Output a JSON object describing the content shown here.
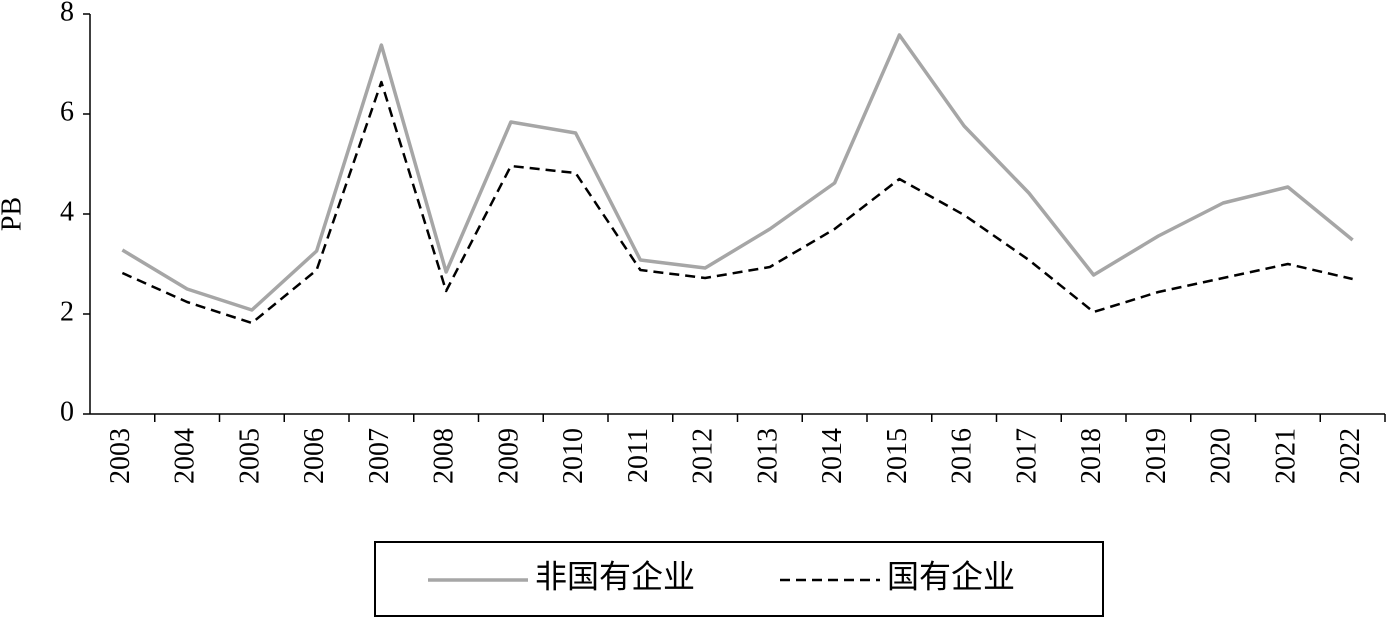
{
  "chart_data": {
    "type": "line",
    "ylabel": "PB",
    "categories": [
      "2003",
      "2004",
      "2005",
      "2006",
      "2007",
      "2008",
      "2009",
      "2010",
      "2011",
      "2012",
      "2013",
      "2014",
      "2015",
      "2016",
      "2017",
      "2018",
      "2019",
      "2020",
      "2021",
      "2022"
    ],
    "series": [
      {
        "name": "非国有企业",
        "color": "#a6a6a6",
        "dash": false,
        "values": [
          3.28,
          2.5,
          2.08,
          3.26,
          7.38,
          2.84,
          5.84,
          5.62,
          3.08,
          2.92,
          3.7,
          4.62,
          7.58,
          5.76,
          4.42,
          2.78,
          3.56,
          4.22,
          4.54,
          3.48
        ]
      },
      {
        "name": "国有企业",
        "color": "#000000",
        "dash": true,
        "values": [
          2.82,
          2.24,
          1.82,
          2.88,
          6.64,
          2.46,
          4.96,
          4.82,
          2.88,
          2.72,
          2.94,
          3.7,
          4.7,
          3.98,
          3.08,
          2.04,
          2.44,
          2.72,
          3.0,
          2.7
        ]
      }
    ],
    "ylim": [
      0,
      8
    ],
    "yticks": [
      0,
      2,
      4,
      6,
      8
    ]
  }
}
